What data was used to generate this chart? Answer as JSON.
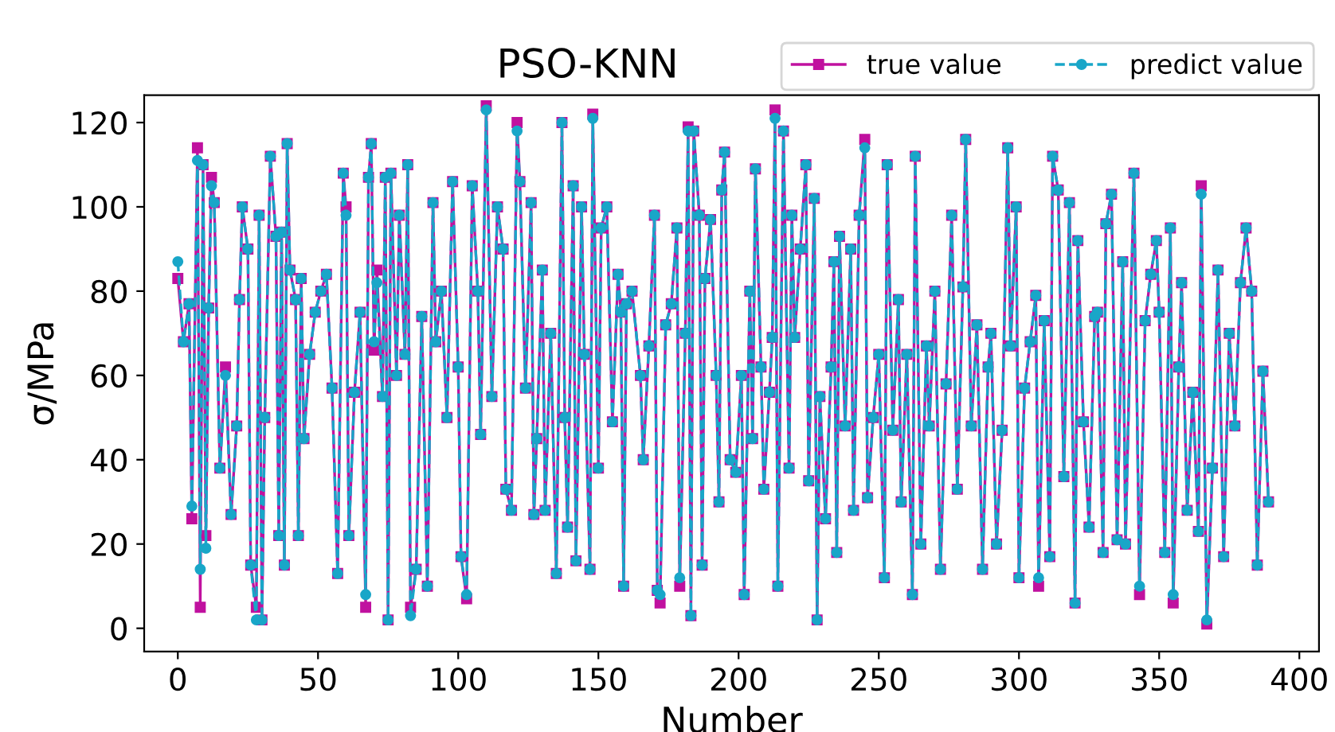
{
  "chart_data": {
    "type": "line",
    "title": "PSO-KNN",
    "xlabel": "Number",
    "ylabel": "σ/MPa",
    "xlim": [
      -12,
      407
    ],
    "ylim": [
      -5.5,
      126.5
    ],
    "xticks": [
      0,
      50,
      100,
      150,
      200,
      250,
      300,
      350,
      400
    ],
    "yticks": [
      0,
      20,
      40,
      60,
      80,
      100,
      120
    ],
    "grid": false,
    "legend": "top right",
    "x": [
      0,
      2,
      4,
      5,
      7,
      8,
      9,
      10,
      11,
      12,
      13,
      15,
      17,
      19,
      21,
      22,
      23,
      25,
      26,
      28,
      29,
      30,
      31,
      33,
      35,
      36,
      37,
      38,
      39,
      40,
      42,
      43,
      44,
      45,
      47,
      49,
      51,
      53,
      55,
      57,
      59,
      60,
      61,
      63,
      65,
      67,
      68,
      69,
      70,
      71,
      73,
      74,
      75,
      76,
      78,
      79,
      81,
      82,
      83,
      85,
      87,
      89,
      91,
      92,
      94,
      96,
      98,
      100,
      101,
      103,
      105,
      107,
      108,
      110,
      112,
      114,
      116,
      117,
      119,
      121,
      122,
      124,
      126,
      127,
      128,
      130,
      131,
      133,
      135,
      137,
      138,
      139,
      141,
      142,
      144,
      145,
      147,
      148,
      150,
      151,
      153,
      155,
      157,
      158,
      159,
      160,
      162,
      165,
      166,
      168,
      170,
      171,
      172,
      174,
      176,
      178,
      179,
      181,
      182,
      183,
      184,
      186,
      187,
      188,
      190,
      192,
      193,
      194,
      195,
      197,
      199,
      201,
      202,
      204,
      205,
      206,
      208,
      209,
      211,
      212,
      213,
      214,
      216,
      218,
      219,
      220,
      222,
      224,
      225,
      227,
      228,
      229,
      231,
      233,
      234,
      235,
      236,
      238,
      240,
      241,
      243,
      245,
      246,
      248,
      250,
      252,
      253,
      255,
      257,
      258,
      260,
      262,
      263,
      265,
      267,
      268,
      270,
      272,
      274,
      276,
      278,
      280,
      281,
      283,
      285,
      287,
      289,
      290,
      292,
      294,
      296,
      297,
      299,
      300,
      302,
      304,
      306,
      307,
      309,
      311,
      312,
      314,
      316,
      318,
      320,
      321,
      323,
      325,
      327,
      328,
      330,
      331,
      333,
      335,
      337,
      338,
      341,
      343,
      345,
      347,
      349,
      350,
      352,
      354,
      355,
      357,
      358,
      360,
      362,
      364,
      365,
      367,
      369,
      371,
      373,
      375,
      377,
      379,
      381,
      383,
      385,
      387,
      389
    ],
    "series": [
      {
        "name": "true value",
        "color": "#c0119f",
        "marker": "square",
        "line_style": "solid",
        "values": [
          83,
          68,
          77,
          26,
          114,
          5,
          110,
          22,
          76,
          107,
          101,
          38,
          62,
          27,
          48,
          78,
          100,
          90,
          15,
          5,
          98,
          2,
          50,
          112,
          93,
          22,
          94,
          15,
          115,
          85,
          78,
          22,
          83,
          45,
          65,
          75,
          80,
          84,
          57,
          13,
          108,
          100,
          22,
          56,
          75,
          5,
          107,
          115,
          66,
          85,
          55,
          107,
          2,
          108,
          60,
          98,
          65,
          110,
          5,
          14,
          74,
          10,
          101,
          68,
          80,
          50,
          106,
          62,
          17,
          7,
          105,
          80,
          46,
          124,
          55,
          100,
          90,
          33,
          28,
          120,
          106,
          57,
          101,
          27,
          45,
          85,
          28,
          70,
          13,
          120,
          50,
          24,
          105,
          16,
          100,
          65,
          14,
          122,
          38,
          95,
          100,
          49,
          84,
          75,
          10,
          77,
          80,
          60,
          40,
          67,
          98,
          9,
          6,
          72,
          77,
          95,
          10,
          70,
          119,
          3,
          118,
          98,
          15,
          83,
          97,
          60,
          30,
          104,
          113,
          40,
          37,
          60,
          8,
          80,
          45,
          109,
          62,
          33,
          56,
          69,
          123,
          10,
          118,
          38,
          98,
          69,
          90,
          110,
          35,
          102,
          2,
          55,
          26,
          62,
          87,
          18,
          93,
          48,
          90,
          28,
          98,
          116,
          31,
          50,
          65,
          12,
          110,
          47,
          78,
          30,
          65,
          8,
          112,
          20,
          67,
          48,
          80,
          14,
          58,
          98,
          33,
          81,
          116,
          48,
          72,
          14,
          62,
          70,
          20,
          47,
          114,
          67,
          100,
          12,
          57,
          68,
          79,
          10,
          73,
          17,
          112,
          104,
          36,
          101,
          6,
          92,
          49,
          24,
          74,
          75,
          18,
          96,
          103,
          21,
          87,
          20,
          108,
          8,
          73,
          84,
          92,
          75,
          18,
          95,
          6,
          62,
          82,
          28,
          56,
          23,
          105,
          1,
          38,
          85,
          17,
          70,
          48,
          82,
          95,
          80,
          15,
          61,
          30
        ]
      },
      {
        "name": "predict value",
        "color": "#19a6c8",
        "marker": "circle",
        "line_style": "dashed",
        "values": [
          87,
          68,
          77,
          29,
          111,
          14,
          110,
          19,
          76,
          105,
          101,
          38,
          60,
          27,
          48,
          78,
          100,
          90,
          15,
          2,
          98,
          2,
          50,
          112,
          93,
          22,
          94,
          15,
          115,
          85,
          78,
          22,
          83,
          45,
          65,
          75,
          80,
          84,
          57,
          13,
          108,
          98,
          22,
          56,
          75,
          8,
          107,
          115,
          68,
          82,
          55,
          107,
          2,
          108,
          60,
          98,
          65,
          110,
          3,
          14,
          74,
          10,
          101,
          68,
          80,
          50,
          106,
          62,
          17,
          8,
          105,
          80,
          46,
          123,
          55,
          100,
          90,
          33,
          28,
          118,
          106,
          57,
          101,
          27,
          45,
          85,
          28,
          70,
          13,
          120,
          50,
          24,
          105,
          16,
          100,
          65,
          14,
          121,
          38,
          95,
          100,
          49,
          84,
          75,
          10,
          77,
          80,
          60,
          40,
          67,
          98,
          9,
          8,
          72,
          77,
          95,
          12,
          70,
          118,
          3,
          118,
          98,
          15,
          83,
          97,
          60,
          30,
          104,
          113,
          40,
          37,
          60,
          8,
          80,
          45,
          109,
          62,
          33,
          56,
          69,
          121,
          10,
          118,
          38,
          98,
          69,
          90,
          110,
          35,
          102,
          2,
          55,
          26,
          62,
          87,
          18,
          93,
          48,
          90,
          28,
          98,
          114,
          31,
          50,
          65,
          12,
          110,
          47,
          78,
          30,
          65,
          8,
          112,
          20,
          67,
          48,
          80,
          14,
          58,
          98,
          33,
          81,
          116,
          48,
          72,
          14,
          62,
          70,
          20,
          47,
          114,
          67,
          100,
          12,
          57,
          68,
          79,
          12,
          73,
          17,
          112,
          104,
          36,
          101,
          6,
          92,
          49,
          24,
          74,
          75,
          18,
          96,
          103,
          21,
          87,
          20,
          108,
          10,
          73,
          84,
          92,
          75,
          18,
          95,
          8,
          62,
          82,
          28,
          56,
          23,
          103,
          2,
          38,
          85,
          17,
          70,
          48,
          82,
          95,
          80,
          15,
          61,
          30
        ]
      }
    ]
  }
}
